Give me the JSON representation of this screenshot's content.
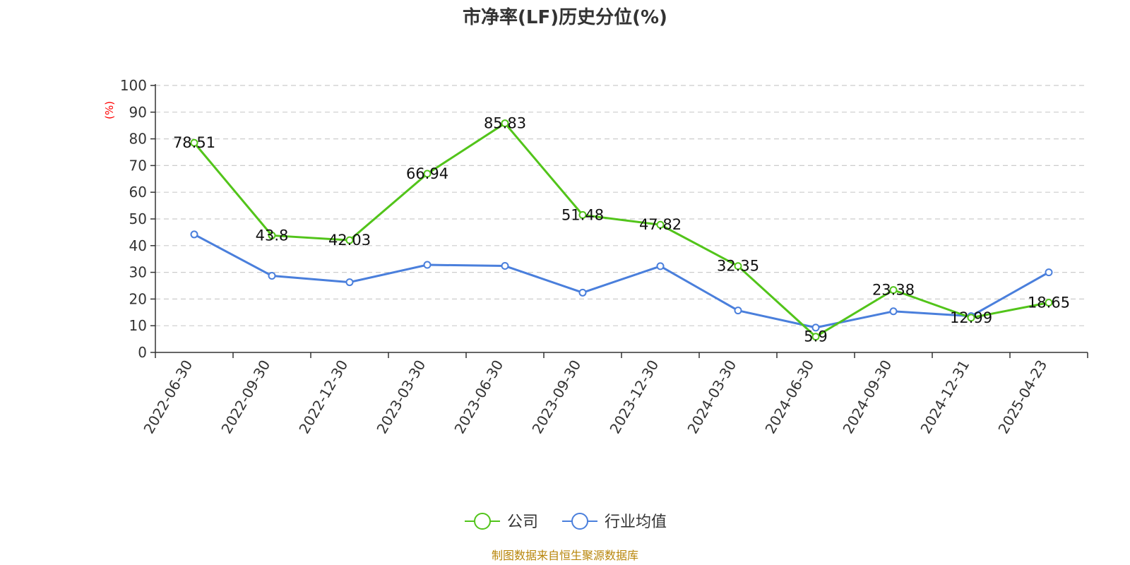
{
  "chart_data": {
    "type": "line",
    "title": "市净率(LF)历史分位(%)",
    "ylabel": "(%)",
    "ylim": [
      0,
      100
    ],
    "yticks": [
      0,
      10,
      20,
      30,
      40,
      50,
      60,
      70,
      80,
      90,
      100
    ],
    "grid": true,
    "legend_position": "bottom-center",
    "categories": [
      "2022-06-30",
      "2022-09-30",
      "2022-12-30",
      "2023-03-30",
      "2023-06-30",
      "2023-09-30",
      "2023-12-30",
      "2024-03-30",
      "2024-06-30",
      "2024-09-30",
      "2024-12-31",
      "2025-04-23"
    ],
    "series": [
      {
        "name": "公司",
        "color": "#52c41a",
        "values": [
          78.51,
          43.8,
          42.03,
          66.94,
          85.83,
          51.48,
          47.82,
          32.35,
          5.9,
          23.38,
          12.99,
          18.65
        ],
        "labels": [
          "78.51",
          "43.8",
          "42.03",
          "66.94",
          "85.83",
          "51.48",
          "47.82",
          "32.35",
          "5.9",
          "23.38",
          "12.99",
          "18.65"
        ]
      },
      {
        "name": "行业均值",
        "color": "#4a7fdc",
        "values": [
          44.2,
          28.7,
          26.3,
          32.8,
          32.4,
          22.4,
          32.3,
          15.7,
          9.3,
          15.4,
          13.6,
          30.0
        ]
      }
    ]
  },
  "footer": {
    "source": "制图数据来自恒生聚源数据库"
  }
}
